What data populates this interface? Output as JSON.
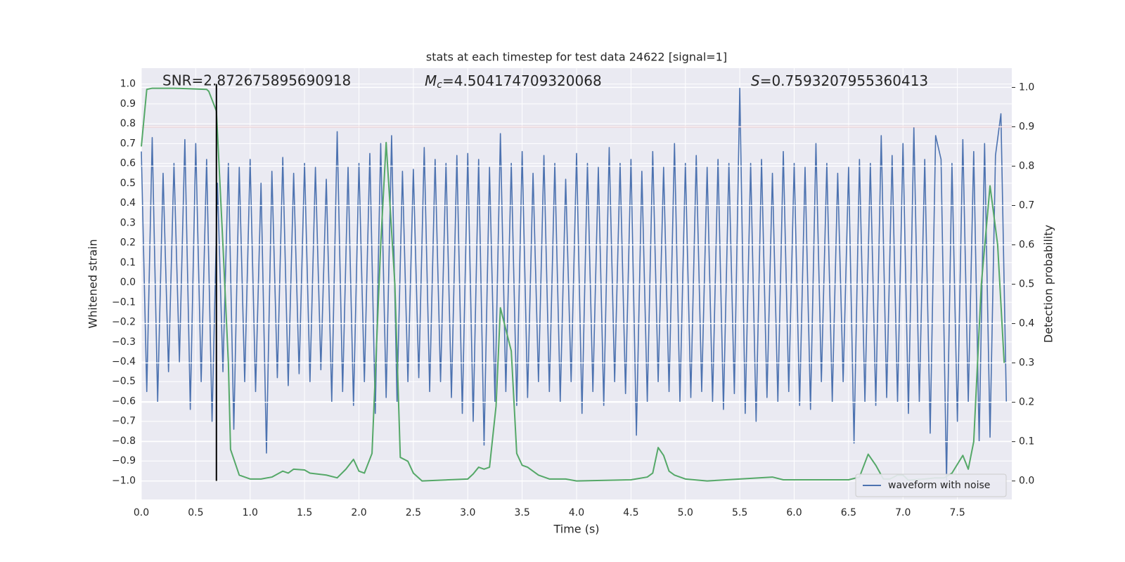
{
  "chart_data": {
    "type": "line",
    "title": "stats at each timestep for test data 24622 [signal=1]",
    "xlabel": "Time (s)",
    "ylabel": "Whitened strain",
    "y2label": "Detection probability",
    "annotations": {
      "snr": "SNR=2.872675895690918",
      "mc": {
        "symbol": "M",
        "subscript": "c",
        "text": "=4.504174709320068"
      },
      "s": {
        "symbol": "S",
        "text": "=0.7593207955360413"
      }
    },
    "xlim": [
      0,
      8
    ],
    "ylim": [
      -1.094,
      1.08
    ],
    "y2lim": [
      -0.047,
      1.049
    ],
    "xticks": [
      {
        "value": 0,
        "label": "0.0"
      },
      {
        "value": 0.5,
        "label": "0.5"
      },
      {
        "value": 1,
        "label": "1.0"
      },
      {
        "value": 1.5,
        "label": "1.5"
      },
      {
        "value": 2,
        "label": "2.0"
      },
      {
        "value": 2.5,
        "label": "2.5"
      },
      {
        "value": 3,
        "label": "3.0"
      },
      {
        "value": 3.5,
        "label": "3.5"
      },
      {
        "value": 4,
        "label": "4.0"
      },
      {
        "value": 4.5,
        "label": "4.5"
      },
      {
        "value": 5,
        "label": "5.0"
      },
      {
        "value": 5.5,
        "label": "5.5"
      },
      {
        "value": 6,
        "label": "6.0"
      },
      {
        "value": 6.5,
        "label": "6.5"
      },
      {
        "value": 7,
        "label": "7.0"
      },
      {
        "value": 7.5,
        "label": "7.5"
      }
    ],
    "yticks": [
      {
        "value": -1,
        "label": "−1.0"
      },
      {
        "value": -0.9,
        "label": "−0.9"
      },
      {
        "value": -0.8,
        "label": "−0.8"
      },
      {
        "value": -0.7,
        "label": "−0.7"
      },
      {
        "value": -0.6,
        "label": "−0.6"
      },
      {
        "value": -0.5,
        "label": "−0.5"
      },
      {
        "value": -0.4,
        "label": "−0.4"
      },
      {
        "value": -0.3,
        "label": "−0.3"
      },
      {
        "value": -0.2,
        "label": "−0.2"
      },
      {
        "value": -0.1,
        "label": "−0.1"
      },
      {
        "value": 0,
        "label": "0.0"
      },
      {
        "value": 0.1,
        "label": "0.1"
      },
      {
        "value": 0.2,
        "label": "0.2"
      },
      {
        "value": 0.3,
        "label": "0.3"
      },
      {
        "value": 0.4,
        "label": "0.4"
      },
      {
        "value": 0.5,
        "label": "0.5"
      },
      {
        "value": 0.6,
        "label": "0.6"
      },
      {
        "value": 0.7,
        "label": "0.7"
      },
      {
        "value": 0.8,
        "label": "0.8"
      },
      {
        "value": 0.9,
        "label": "0.9"
      },
      {
        "value": 1,
        "label": "1.0"
      }
    ],
    "y2ticks": [
      {
        "value": 0,
        "label": "0.0"
      },
      {
        "value": 0.1,
        "label": "0.1"
      },
      {
        "value": 0.2,
        "label": "0.2"
      },
      {
        "value": 0.3,
        "label": "0.3"
      },
      {
        "value": 0.4,
        "label": "0.4"
      },
      {
        "value": 0.5,
        "label": "0.5"
      },
      {
        "value": 0.6,
        "label": "0.6"
      },
      {
        "value": 0.7,
        "label": "0.7"
      },
      {
        "value": 0.8,
        "label": "0.8"
      },
      {
        "value": 0.9,
        "label": "0.9"
      },
      {
        "value": 1,
        "label": "1.0"
      }
    ],
    "grid": true,
    "legend": "lower right",
    "hlines": [
      {
        "y": 0.9,
        "axis": "y2",
        "color": "#c44e52"
      }
    ],
    "vlines": [
      {
        "x": 0.69,
        "ymin": -1,
        "ymax": 1,
        "color": "#000000"
      }
    ],
    "series": [
      {
        "name": "waveform with noise",
        "color": "#4c72b0",
        "x": [
          0,
          0.05,
          0.1,
          0.15,
          0.2,
          0.25,
          0.3,
          0.35,
          0.4,
          0.45,
          0.5,
          0.55,
          0.6,
          0.65,
          0.7,
          0.75,
          0.8,
          0.85,
          0.9,
          0.95,
          1,
          1.05,
          1.1,
          1.15,
          1.2,
          1.25,
          1.3,
          1.35,
          1.4,
          1.45,
          1.5,
          1.55,
          1.6,
          1.65,
          1.7,
          1.75,
          1.8,
          1.85,
          1.9,
          1.95,
          2,
          2.05,
          2.1,
          2.15,
          2.2,
          2.25,
          2.3,
          2.35,
          2.4,
          2.45,
          2.5,
          2.55,
          2.6,
          2.65,
          2.7,
          2.75,
          2.8,
          2.85,
          2.9,
          2.95,
          3,
          3.05,
          3.1,
          3.15,
          3.2,
          3.25,
          3.3,
          3.35,
          3.4,
          3.45,
          3.5,
          3.55,
          3.6,
          3.65,
          3.7,
          3.75,
          3.8,
          3.85,
          3.9,
          3.95,
          4,
          4.05,
          4.1,
          4.15,
          4.2,
          4.25,
          4.3,
          4.35,
          4.4,
          4.45,
          4.5,
          4.55,
          4.6,
          4.65,
          4.7,
          4.75,
          4.8,
          4.85,
          4.9,
          4.95,
          5,
          5.05,
          5.1,
          5.15,
          5.2,
          5.25,
          5.3,
          5.35,
          5.4,
          5.45,
          5.5,
          5.55,
          5.6,
          5.65,
          5.7,
          5.75,
          5.8,
          5.85,
          5.9,
          5.95,
          6,
          6.05,
          6.1,
          6.15,
          6.2,
          6.25,
          6.3,
          6.35,
          6.4,
          6.45,
          6.5,
          6.55,
          6.6,
          6.65,
          6.7,
          6.75,
          6.8,
          6.85,
          6.9,
          6.95,
          7,
          7.05,
          7.1,
          7.15,
          7.2,
          7.25,
          7.3,
          7.35,
          7.4,
          7.45,
          7.5,
          7.55,
          7.6,
          7.65,
          7.7,
          7.75,
          7.8,
          7.85,
          7.9,
          7.95
        ],
        "values": [
          0.66,
          -0.55,
          0.73,
          -0.6,
          0.55,
          -0.45,
          0.6,
          -0.4,
          0.72,
          -0.64,
          0.7,
          -0.5,
          0.62,
          -0.7,
          0.5,
          -0.45,
          0.6,
          -0.74,
          0.58,
          -0.5,
          0.62,
          -0.55,
          0.5,
          -0.86,
          0.56,
          -0.48,
          0.63,
          -0.52,
          0.55,
          -0.46,
          0.6,
          -0.5,
          0.58,
          -0.44,
          0.52,
          -0.6,
          0.76,
          -0.55,
          0.58,
          -0.62,
          0.6,
          -0.5,
          0.65,
          -0.66,
          0.7,
          -0.58,
          0.74,
          -0.6,
          0.56,
          -0.5,
          0.57,
          -0.48,
          0.68,
          -0.55,
          0.62,
          -0.5,
          0.6,
          -0.58,
          0.64,
          -0.66,
          0.65,
          -0.7,
          0.62,
          -0.82,
          0.58,
          -0.6,
          0.75,
          -0.55,
          0.6,
          -0.62,
          0.66,
          -0.58,
          0.55,
          -0.5,
          0.64,
          -0.55,
          0.6,
          -0.6,
          0.52,
          -0.5,
          0.65,
          -0.66,
          0.6,
          -0.55,
          0.58,
          -0.62,
          0.68,
          -0.5,
          0.6,
          -0.56,
          0.62,
          -0.77,
          0.56,
          -0.6,
          0.66,
          -0.5,
          0.58,
          -0.55,
          0.7,
          -0.6,
          0.6,
          -0.58,
          0.64,
          -0.55,
          0.58,
          -0.6,
          0.62,
          -0.64,
          0.6,
          -0.56,
          0.98,
          -0.66,
          0.6,
          -0.7,
          0.62,
          -0.58,
          0.55,
          -0.6,
          0.66,
          -0.55,
          0.6,
          -0.62,
          0.58,
          -0.64,
          0.7,
          -0.5,
          0.6,
          -0.6,
          0.55,
          -0.5,
          0.58,
          -0.81,
          0.62,
          -0.6,
          0.6,
          -0.62,
          0.74,
          -0.58,
          0.64,
          -0.6,
          0.7,
          -0.66,
          0.78,
          -0.6,
          0.62,
          -0.76,
          0.74,
          0.62,
          -1.0,
          0.6,
          -0.7,
          0.72,
          -0.6,
          0.66,
          -0.8,
          0.7,
          -0.78,
          0.64,
          0.85,
          -0.6
        ]
      },
      {
        "color": "#55a868",
        "axis": "y2",
        "x": [
          0,
          0.05,
          0.1,
          0.3,
          0.6,
          0.62,
          0.69,
          0.75,
          0.8,
          0.82,
          0.9,
          1,
          1.1,
          1.2,
          1.3,
          1.35,
          1.4,
          1.5,
          1.55,
          1.7,
          1.8,
          1.88,
          1.95,
          2,
          2.05,
          2.12,
          2.2,
          2.25,
          2.33,
          2.38,
          2.45,
          2.5,
          2.58,
          3,
          3.05,
          3.1,
          3.15,
          3.2,
          3.26,
          3.3,
          3.4,
          3.45,
          3.5,
          3.55,
          3.65,
          3.75,
          3.9,
          4,
          4.5,
          4.65,
          4.7,
          4.75,
          4.8,
          4.85,
          4.9,
          5,
          5.2,
          5.8,
          5.9,
          6.5,
          6.6,
          6.68,
          6.75,
          6.82,
          6.88,
          6.95,
          7,
          7.05,
          7.2,
          7.3,
          7.38,
          7.45,
          7.55,
          7.6,
          7.65,
          7.72,
          7.8,
          7.87,
          7.93
        ],
        "values": [
          0.85,
          0.995,
          0.998,
          0.998,
          0.995,
          0.99,
          0.94,
          0.6,
          0.3,
          0.08,
          0.015,
          0.005,
          0.005,
          0.01,
          0.025,
          0.02,
          0.03,
          0.028,
          0.02,
          0.015,
          0.008,
          0.03,
          0.055,
          0.025,
          0.02,
          0.07,
          0.6,
          0.86,
          0.5,
          0.06,
          0.05,
          0.02,
          0,
          0.005,
          0.018,
          0.035,
          0.03,
          0.035,
          0.19,
          0.44,
          0.33,
          0.07,
          0.04,
          0.035,
          0.015,
          0.005,
          0.005,
          0,
          0.003,
          0.01,
          0.02,
          0.085,
          0.065,
          0.025,
          0.015,
          0.005,
          0,
          0.01,
          0.003,
          0.003,
          0.01,
          0.068,
          0.04,
          0.005,
          0.005,
          0.015,
          0.015,
          0.002,
          0.005,
          0.008,
          0.008,
          0.02,
          0.065,
          0.03,
          0.1,
          0.5,
          0.75,
          0.6,
          0.3
        ]
      }
    ]
  }
}
